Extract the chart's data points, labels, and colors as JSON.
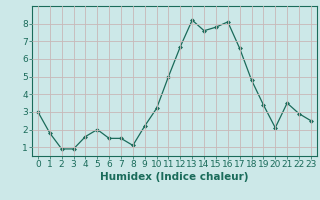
{
  "x": [
    0,
    1,
    2,
    3,
    4,
    5,
    6,
    7,
    8,
    9,
    10,
    11,
    12,
    13,
    14,
    15,
    16,
    17,
    18,
    19,
    20,
    21,
    22,
    23
  ],
  "y": [
    3.0,
    1.8,
    0.9,
    0.9,
    1.6,
    2.0,
    1.5,
    1.5,
    1.1,
    2.2,
    3.2,
    5.0,
    6.7,
    8.2,
    7.6,
    7.8,
    8.1,
    6.6,
    4.8,
    3.4,
    2.1,
    3.5,
    2.9,
    2.5
  ],
  "line_color": "#1a6b5a",
  "marker": "D",
  "marker_size": 2,
  "background_color": "#cce8e8",
  "grid_color": "#c8b8b8",
  "xlabel": "Humidex (Indice chaleur)",
  "xlim": [
    -0.5,
    23.5
  ],
  "ylim": [
    0.5,
    9.0
  ],
  "yticks": [
    1,
    2,
    3,
    4,
    5,
    6,
    7,
    8
  ],
  "xticks": [
    0,
    1,
    2,
    3,
    4,
    5,
    6,
    7,
    8,
    9,
    10,
    11,
    12,
    13,
    14,
    15,
    16,
    17,
    18,
    19,
    20,
    21,
    22,
    23
  ],
  "tick_label_size": 6.5,
  "xlabel_fontsize": 7.5,
  "xlabel_fontweight": "bold"
}
